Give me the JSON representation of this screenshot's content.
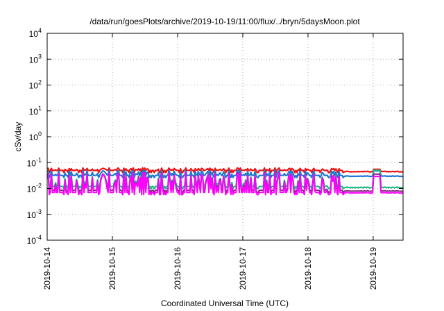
{
  "chart_data": {
    "type": "line",
    "title": "/data/run/goesPlots/archive/2019-10-19/11:00/flux/../bryn/5daysMoon.plot",
    "xlabel": "Coordinated Universal Time (UTC)",
    "ylabel": "cSv/day",
    "yscale": "log",
    "ylim": [
      0.0001,
      10000
    ],
    "xlim": [
      "2019-10-14T00:00",
      "2019-10-19T11:00"
    ],
    "grid": true,
    "x_ticks": [
      "2019-10-14",
      "2019-10-15",
      "2019-10-16",
      "2019-10-17",
      "2019-10-18",
      "2019-10-19"
    ],
    "y_ticks": [
      {
        "base": "10",
        "exp": "4",
        "value": 10000
      },
      {
        "base": "10",
        "exp": "3",
        "value": 1000
      },
      {
        "base": "10",
        "exp": "2",
        "value": 100
      },
      {
        "base": "10",
        "exp": "1",
        "value": 10
      },
      {
        "base": "10",
        "exp": "0",
        "value": 1
      },
      {
        "base": "10",
        "exp": "-1",
        "value": 0.1
      },
      {
        "base": "10",
        "exp": "-2",
        "value": 0.01
      },
      {
        "base": "10",
        "exp": "-3",
        "value": 0.001
      },
      {
        "base": "10",
        "exp": "-4",
        "value": 0.0001
      }
    ],
    "series": [
      {
        "color": "#ee1111",
        "base": 0.05,
        "spike_factor": 1.25,
        "gap_value": 0.045
      },
      {
        "color": "#1e78d2",
        "base": 0.032,
        "spike_factor": 1.6,
        "gap_value": 0.03
      },
      {
        "color": "#22bb88",
        "base": 0.012,
        "spike_factor": 3.5,
        "gap_value": 0.011
      },
      {
        "color": "#882288",
        "base": 0.0085,
        "spike_factor": 5.0,
        "gap_value": 0.008
      },
      {
        "color": "#ff00ff",
        "base": 0.007,
        "spike_factor": 6.0,
        "gap_value": 0.0068
      }
    ]
  }
}
